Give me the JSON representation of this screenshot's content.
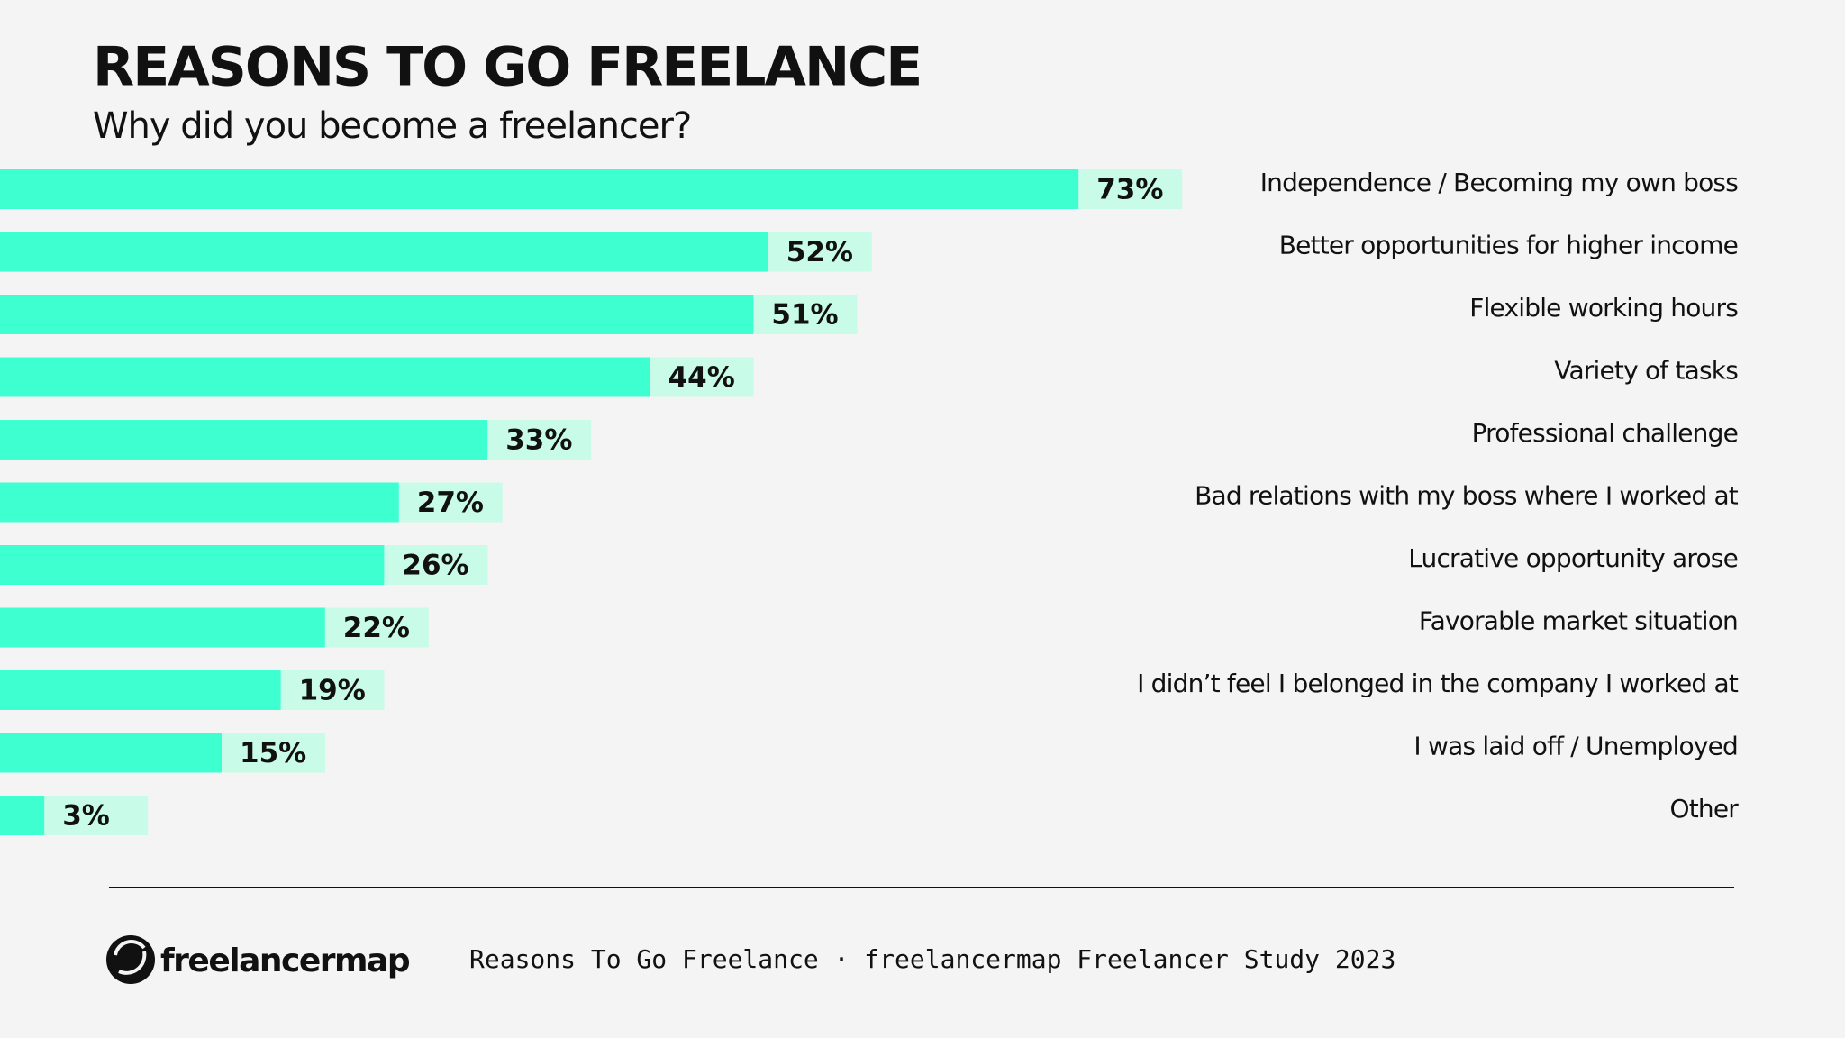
{
  "chart_data": {
    "type": "bar",
    "orientation": "horizontal",
    "title": "REASONS TO GO FREELANCE",
    "subtitle": "Why did you become a freelancer?",
    "categories": [
      "Independence / Becoming my own boss",
      "Better opportunities for higher income",
      "Flexible working hours",
      "Variety of tasks",
      "Professional challenge",
      "Bad relations with my boss where I worked at",
      "Lucrative opportunity arose",
      "Favorable market situation",
      "I didn’t feel I belonged in the company I worked at",
      "I was laid off / Unemployed",
      "Other"
    ],
    "values": [
      73,
      52,
      51,
      44,
      33,
      27,
      26,
      22,
      19,
      15,
      3
    ],
    "value_labels": [
      "73%",
      "52%",
      "51%",
      "44%",
      "33%",
      "27%",
      "26%",
      "22%",
      "19%",
      "15%",
      "3%"
    ],
    "color": "#3dffd0",
    "label_background": "#c9fbe9"
  },
  "footer": {
    "logo": "freelancermap",
    "source": "Reasons To Go Freelance · freelancermap Freelancer Study 2023"
  }
}
